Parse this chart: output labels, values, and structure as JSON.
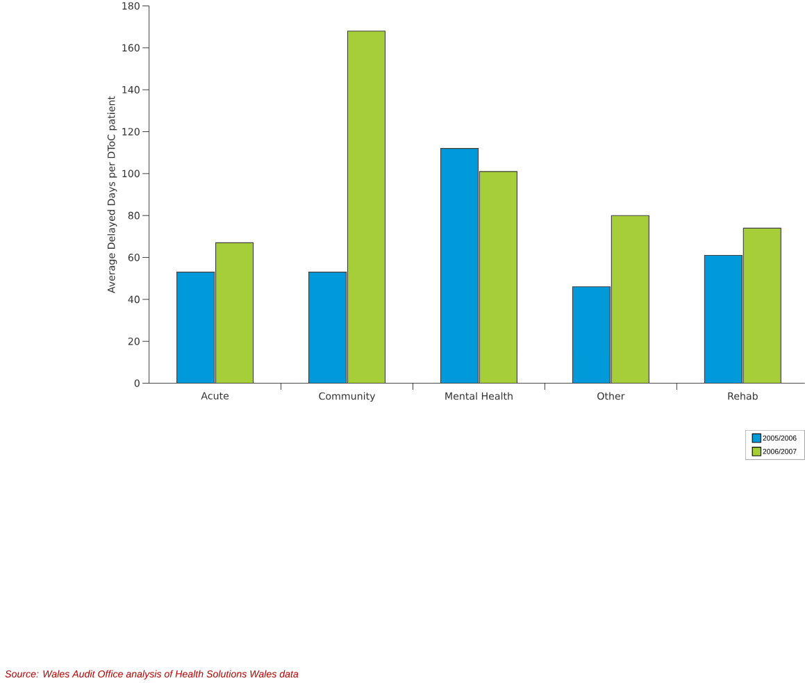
{
  "chart_data": {
    "type": "bar",
    "ylabel": "Average Delayed Days per DToC patient",
    "categories": [
      "Acute",
      "Community",
      "Mental Health",
      "Other",
      "Rehab"
    ],
    "series": [
      {
        "name": "2005/2006",
        "color": "#009ada",
        "values": [
          53,
          53,
          112,
          46,
          61
        ]
      },
      {
        "name": "2006/2007",
        "color": "#a6ce39",
        "values": [
          67,
          168,
          101,
          80,
          74
        ]
      }
    ],
    "ylim": [
      0,
      180
    ],
    "yticks": [
      0,
      20,
      40,
      60,
      80,
      100,
      120,
      140,
      160,
      180
    ],
    "legend": "bottom right",
    "annotations": [
      "Source: Wales Audit Office analysis of Health Solutions Wales data"
    ]
  }
}
